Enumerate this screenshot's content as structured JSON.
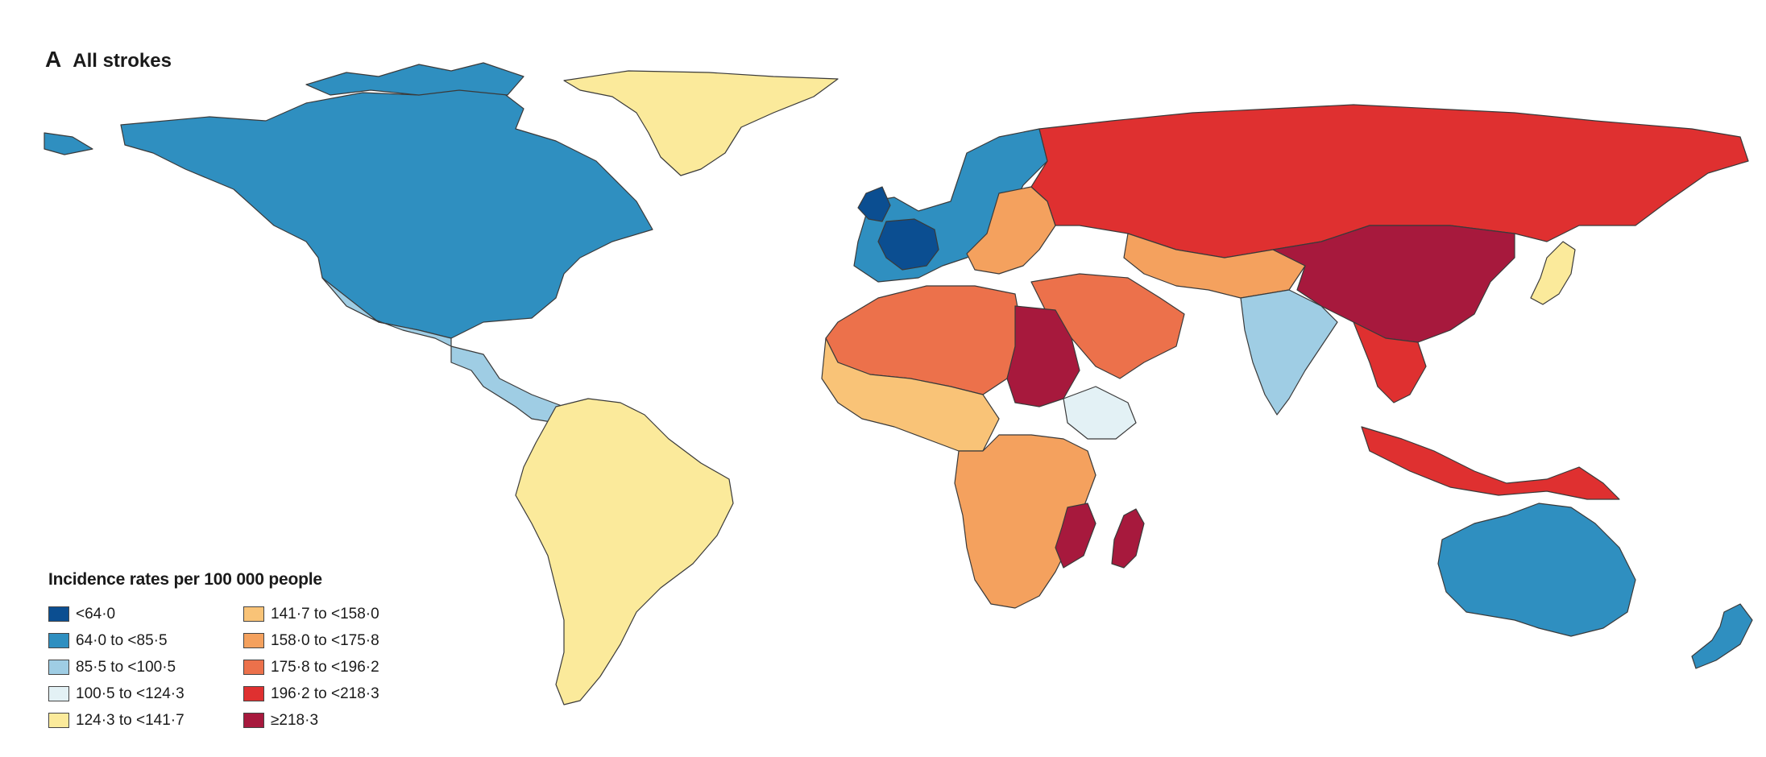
{
  "panel": {
    "letter": "A",
    "title": "All strokes"
  },
  "legend": {
    "title": "Incidence rates per 100 000 people",
    "items": [
      {
        "label": "<64·0",
        "color": "#0b4e91"
      },
      {
        "label": "64·0 to <85·5",
        "color": "#2f8fc0"
      },
      {
        "label": "85·5 to <100·5",
        "color": "#9fcde4"
      },
      {
        "label": "100·5 to <124·3",
        "color": "#e3f1f5"
      },
      {
        "label": "124·3 to <141·7",
        "color": "#fbea9b"
      },
      {
        "label": "141·7 to <158·0",
        "color": "#f9c377"
      },
      {
        "label": "158·0 to <175·8",
        "color": "#f4a15e"
      },
      {
        "label": "175·8 to <196·2",
        "color": "#ec714b"
      },
      {
        "label": "196·2 to <218·3",
        "color": "#df3030"
      },
      {
        "label": "≥218·3",
        "color": "#a7193d"
      }
    ]
  },
  "regions": [
    {
      "name": "north-america",
      "color": "#2f8fc0"
    },
    {
      "name": "greenland",
      "color": "#fbea9b"
    },
    {
      "name": "mexico-central-america",
      "color": "#9fcde4"
    },
    {
      "name": "south-america",
      "color": "#fbea9b"
    },
    {
      "name": "europe-west",
      "color": "#2f8fc0"
    },
    {
      "name": "france",
      "color": "#0b4e91"
    },
    {
      "name": "eastern-europe",
      "color": "#f4a15e"
    },
    {
      "name": "russia-mongolia",
      "color": "#df3030"
    },
    {
      "name": "china",
      "color": "#a7193d"
    },
    {
      "name": "central-asia",
      "color": "#f4a15e"
    },
    {
      "name": "middle-east",
      "color": "#ec714b"
    },
    {
      "name": "india",
      "color": "#9fcde4"
    },
    {
      "name": "southeast-asia",
      "color": "#df3030"
    },
    {
      "name": "africa-north",
      "color": "#ec714b"
    },
    {
      "name": "africa-west",
      "color": "#f9c377"
    },
    {
      "name": "egypt-sudan",
      "color": "#a7193d"
    },
    {
      "name": "ethiopia",
      "color": "#e3f1f5"
    },
    {
      "name": "africa-south",
      "color": "#f4a15e"
    },
    {
      "name": "madagascar",
      "color": "#a7193d"
    },
    {
      "name": "mozambique",
      "color": "#a7193d"
    },
    {
      "name": "japan",
      "color": "#fbea9b"
    },
    {
      "name": "indonesia-png",
      "color": "#df3030"
    },
    {
      "name": "australia",
      "color": "#2f8fc0"
    },
    {
      "name": "new-zealand",
      "color": "#2f8fc0"
    }
  ]
}
